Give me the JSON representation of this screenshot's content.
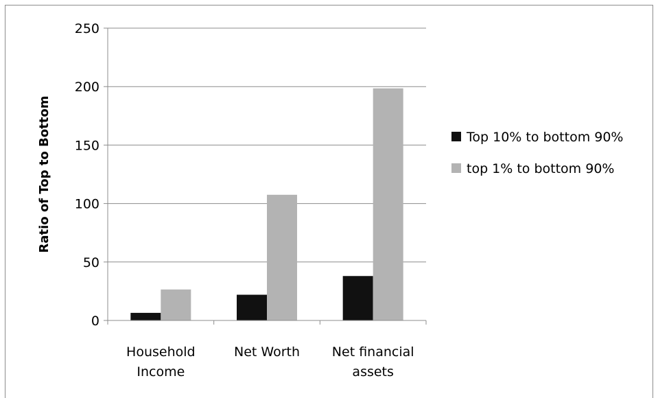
{
  "chart_data": {
    "type": "bar",
    "title": "",
    "xlabel": "",
    "ylabel": "Ratio of Top to Bottom",
    "ylim": [
      0,
      250
    ],
    "yticks": [
      0,
      50,
      100,
      150,
      200,
      250
    ],
    "categories": [
      [
        "Household",
        "Income"
      ],
      [
        "Net Worth"
      ],
      [
        "Net financial",
        "assets"
      ]
    ],
    "series": [
      {
        "name": "Top 10% to bottom 90%",
        "color": "#111111",
        "values": [
          6.5,
          22,
          38
        ]
      },
      {
        "name": "top 1% to bottom 90%",
        "color": "#b3b3b3",
        "values": [
          26.5,
          107.5,
          198.5
        ]
      }
    ],
    "grid": true,
    "legend_position": "right"
  }
}
